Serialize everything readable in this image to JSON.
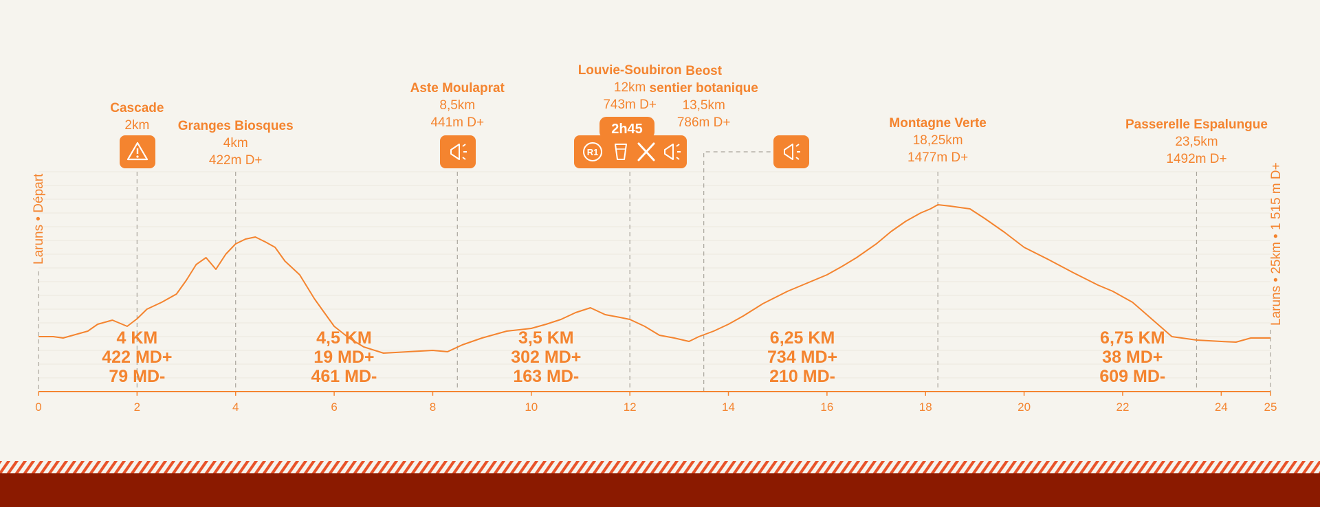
{
  "colors": {
    "accent": "#f4842f",
    "background": "#f6f4ee",
    "footer": "#8b1a00",
    "grid": "#ece8df"
  },
  "chart_data": {
    "type": "area",
    "x_unit": "km",
    "xlim": [
      0,
      25
    ],
    "x_ticks": [
      "0",
      "2",
      "4",
      "6",
      "8",
      "10",
      "12",
      "14",
      "16",
      "18",
      "20",
      "22",
      "24",
      "25"
    ],
    "start_label": "Laruns • Départ",
    "end_label": "Laruns • 25km • 1 515 m D+",
    "profile": [
      [
        0,
        10
      ],
      [
        0.3,
        10
      ],
      [
        0.5,
        8
      ],
      [
        0.8,
        14
      ],
      [
        1.0,
        18
      ],
      [
        1.2,
        28
      ],
      [
        1.5,
        34
      ],
      [
        1.8,
        25
      ],
      [
        2.0,
        36
      ],
      [
        2.2,
        50
      ],
      [
        2.5,
        60
      ],
      [
        2.8,
        72
      ],
      [
        3.0,
        92
      ],
      [
        3.2,
        115
      ],
      [
        3.4,
        125
      ],
      [
        3.6,
        108
      ],
      [
        3.8,
        130
      ],
      [
        4.0,
        145
      ],
      [
        4.2,
        152
      ],
      [
        4.4,
        155
      ],
      [
        4.6,
        148
      ],
      [
        4.8,
        140
      ],
      [
        5.0,
        120
      ],
      [
        5.3,
        100
      ],
      [
        5.6,
        65
      ],
      [
        5.8,
        45
      ],
      [
        6.0,
        25
      ],
      [
        6.3,
        8
      ],
      [
        6.6,
        -5
      ],
      [
        7.0,
        -14
      ],
      [
        7.5,
        -12
      ],
      [
        8.0,
        -10
      ],
      [
        8.3,
        -12
      ],
      [
        8.6,
        -2
      ],
      [
        9.0,
        8
      ],
      [
        9.5,
        18
      ],
      [
        10.0,
        22
      ],
      [
        10.3,
        28
      ],
      [
        10.6,
        35
      ],
      [
        10.9,
        45
      ],
      [
        11.2,
        52
      ],
      [
        11.5,
        42
      ],
      [
        11.8,
        38
      ],
      [
        12.0,
        35
      ],
      [
        12.3,
        25
      ],
      [
        12.6,
        12
      ],
      [
        12.9,
        8
      ],
      [
        13.2,
        3
      ],
      [
        13.4,
        10
      ],
      [
        13.7,
        18
      ],
      [
        14.0,
        28
      ],
      [
        14.3,
        40
      ],
      [
        14.7,
        58
      ],
      [
        15.2,
        76
      ],
      [
        15.6,
        88
      ],
      [
        16.0,
        100
      ],
      [
        16.3,
        112
      ],
      [
        16.6,
        125
      ],
      [
        17.0,
        145
      ],
      [
        17.3,
        163
      ],
      [
        17.6,
        178
      ],
      [
        17.9,
        190
      ],
      [
        18.1,
        196
      ],
      [
        18.25,
        202
      ],
      [
        18.5,
        200
      ],
      [
        18.9,
        196
      ],
      [
        19.2,
        182
      ],
      [
        19.6,
        162
      ],
      [
        20.0,
        140
      ],
      [
        20.5,
        122
      ],
      [
        21.0,
        103
      ],
      [
        21.5,
        85
      ],
      [
        21.8,
        76
      ],
      [
        22.2,
        60
      ],
      [
        22.6,
        35
      ],
      [
        23.0,
        10
      ],
      [
        23.5,
        5
      ],
      [
        24.0,
        3
      ],
      [
        24.3,
        2
      ],
      [
        24.6,
        8
      ],
      [
        25.0,
        8
      ]
    ],
    "waypoints": [
      {
        "name": "Cascade",
        "sub": [
          "2km"
        ],
        "km": 2,
        "badge": {
          "icons": [
            "warning"
          ]
        }
      },
      {
        "name": "Granges Biosques",
        "sub": [
          "4km",
          "422m D+"
        ],
        "km": 4
      },
      {
        "name": "Aste Moulaprat",
        "sub": [
          "8,5km",
          "441m D+"
        ],
        "km": 8.5,
        "badge": {
          "icons": [
            "megaphone"
          ]
        }
      },
      {
        "name": "Louvie-Soubiron",
        "sub": [
          "12km",
          "743m D+"
        ],
        "km": 12,
        "badge": {
          "tab": "2h45",
          "icons": [
            "r1",
            "cup",
            "cutlery",
            "megaphone"
          ]
        }
      },
      {
        "name": "Beost",
        "name2": "sentier botanique",
        "sub": [
          "13,5km",
          "786m D+"
        ],
        "km": 13.5,
        "badge": {
          "icons": [
            "megaphone"
          ]
        }
      },
      {
        "name": "Montagne Verte",
        "sub": [
          "18,25km",
          "1477m D+"
        ],
        "km": 18.25
      },
      {
        "name": "Passerelle Espalungue",
        "sub": [
          "23,5km",
          "1492m D+"
        ],
        "km": 23.5
      }
    ],
    "segments": [
      {
        "dist": "4 KM",
        "up": "422 MD+",
        "down": "79 MD-",
        "km": 2
      },
      {
        "dist": "4,5 KM",
        "up": "19 MD+",
        "down": "461 MD-",
        "km": 6.2
      },
      {
        "dist": "3,5 KM",
        "up": "302 MD+",
        "down": "163 MD-",
        "km": 10.3
      },
      {
        "dist": "6,25 KM",
        "up": "734 MD+",
        "down": "210 MD-",
        "km": 15.5
      },
      {
        "dist": "6,75 KM",
        "up": "38 MD+",
        "down": "609 MD-",
        "km": 22.2
      }
    ]
  }
}
